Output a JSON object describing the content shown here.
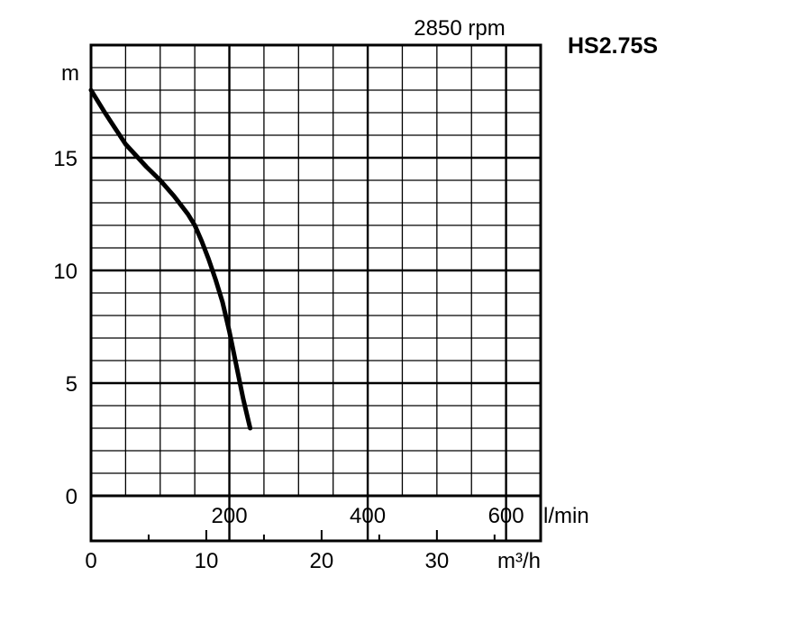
{
  "chart_data": {
    "type": "line",
    "speed_label": "2850 rpm",
    "model_label": "HS2.75S",
    "ylabel": "m",
    "ylim": [
      0,
      20
    ],
    "y_ticks": [
      "0",
      "5",
      "10",
      "15"
    ],
    "y_tick_values": [
      0,
      5,
      10,
      15
    ],
    "xlim_lmin": [
      0,
      650
    ],
    "x_ticks_lmin": [
      "200",
      "400",
      "600"
    ],
    "x_tick_values_lmin": [
      200,
      400,
      600
    ],
    "x_unit_lmin": "l/min",
    "xlim_m3h": [
      0,
      39
    ],
    "x_ticks_m3h": [
      "0",
      "10",
      "20",
      "30"
    ],
    "x_tick_values_m3h": [
      0,
      10,
      20,
      30
    ],
    "x_unit_m3h": "m³/h",
    "grid": true,
    "series": [
      {
        "x": [
          0,
          20,
          50,
          80,
          100,
          120,
          140,
          150,
          160,
          170,
          180,
          190,
          200,
          210,
          220,
          230
        ],
        "y": [
          18.0,
          17.0,
          15.6,
          14.6,
          14.0,
          13.3,
          12.5,
          12.0,
          11.3,
          10.5,
          9.6,
          8.6,
          7.3,
          5.8,
          4.3,
          3.0
        ]
      }
    ]
  }
}
